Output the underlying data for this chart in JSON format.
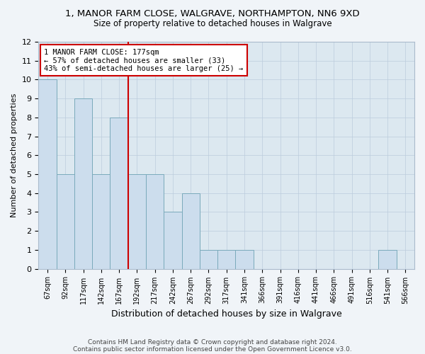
{
  "title": "1, MANOR FARM CLOSE, WALGRAVE, NORTHAMPTON, NN6 9XD",
  "subtitle": "Size of property relative to detached houses in Walgrave",
  "xlabel": "Distribution of detached houses by size in Walgrave",
  "ylabel": "Number of detached properties",
  "categories": [
    "67sqm",
    "92sqm",
    "117sqm",
    "142sqm",
    "167sqm",
    "192sqm",
    "217sqm",
    "242sqm",
    "267sqm",
    "292sqm",
    "317sqm",
    "341sqm",
    "366sqm",
    "391sqm",
    "416sqm",
    "441sqm",
    "466sqm",
    "491sqm",
    "516sqm",
    "541sqm",
    "566sqm"
  ],
  "values": [
    10,
    5,
    9,
    5,
    8,
    5,
    5,
    3,
    4,
    1,
    1,
    1,
    0,
    0,
    0,
    0,
    0,
    0,
    0,
    1,
    0
  ],
  "bar_color": "#ccdded",
  "bar_edge_color": "#7aaabb",
  "grid_color": "#bbccdd",
  "vline_x": 4.5,
  "vline_color": "#cc0000",
  "annotation_text": "1 MANOR FARM CLOSE: 177sqm\n← 57% of detached houses are smaller (33)\n43% of semi-detached houses are larger (25) →",
  "annotation_box_color": "#ffffff",
  "annotation_box_edge": "#cc0000",
  "ylim": [
    0,
    12
  ],
  "yticks": [
    0,
    1,
    2,
    3,
    4,
    5,
    6,
    7,
    8,
    9,
    10,
    11,
    12
  ],
  "footer1": "Contains HM Land Registry data © Crown copyright and database right 2024.",
  "footer2": "Contains public sector information licensed under the Open Government Licence v3.0.",
  "bg_color": "#dce8f0",
  "fig_bg_color": "#f0f4f8"
}
